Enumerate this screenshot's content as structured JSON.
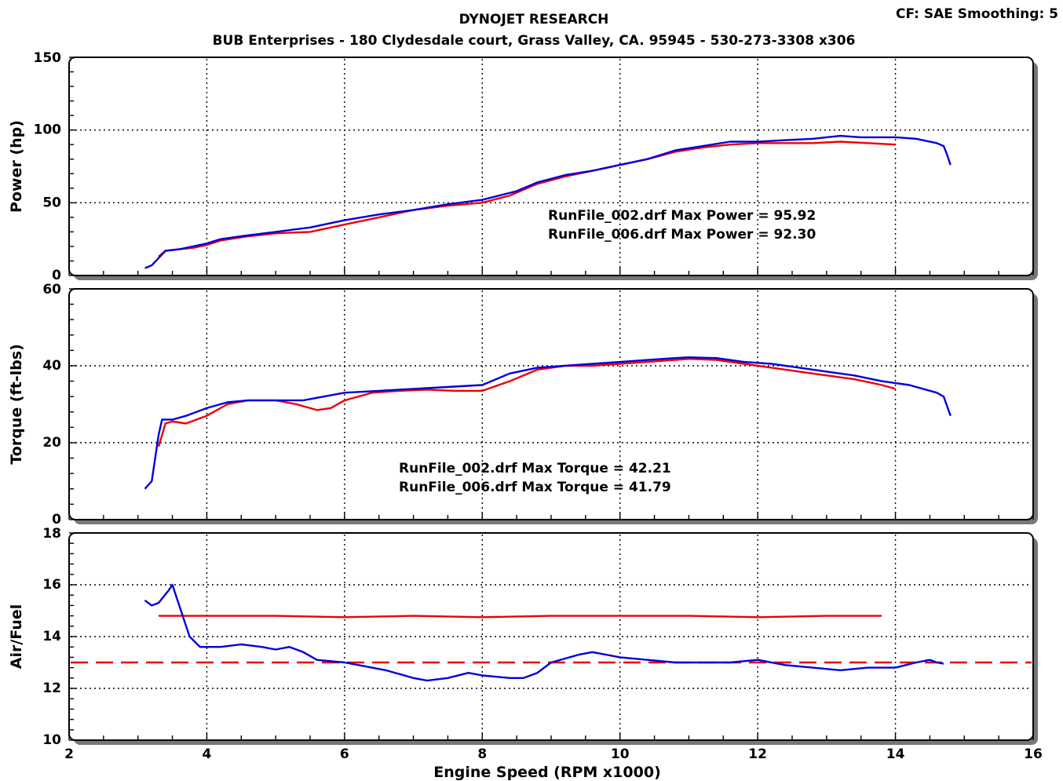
{
  "header": {
    "title": "DYNOJET RESEARCH",
    "subtitle": "BUB Enterprises - 180 Clydesdale court, Grass Valley, CA. 95945 - 530-273-3308 x306",
    "cf_label": "CF: SAE  Smoothing: 5"
  },
  "colors": {
    "run_002": "#0000dd",
    "run_006": "#ee0000",
    "grid": "#000000",
    "panel_shadow": "#777777"
  },
  "chart_data": [
    {
      "type": "line",
      "id": "power",
      "ylabel": "Power (hp)",
      "ylim": [
        0,
        150
      ],
      "yticks": [
        0,
        50,
        100,
        150
      ],
      "xlim": [
        2,
        16
      ],
      "grid": true,
      "annotations": [
        "RunFile_002.drf Max Power = 95.92",
        "RunFile_006.drf Max Power = 92.30"
      ],
      "series": [
        {
          "color": "#0000dd",
          "points": [
            [
              3.1,
              5
            ],
            [
              3.2,
              7
            ],
            [
              3.3,
              12
            ],
            [
              3.4,
              17
            ],
            [
              3.6,
              18
            ],
            [
              3.8,
              20
            ],
            [
              4.0,
              22
            ],
            [
              4.2,
              25
            ],
            [
              4.5,
              27
            ],
            [
              5.0,
              30
            ],
            [
              5.5,
              33
            ],
            [
              6.0,
              38
            ],
            [
              6.5,
              42
            ],
            [
              7.0,
              45
            ],
            [
              7.5,
              49
            ],
            [
              8.0,
              52
            ],
            [
              8.5,
              58
            ],
            [
              8.8,
              64
            ],
            [
              9.2,
              69
            ],
            [
              9.6,
              72
            ],
            [
              10.0,
              76
            ],
            [
              10.4,
              80
            ],
            [
              10.8,
              86
            ],
            [
              11.2,
              89
            ],
            [
              11.6,
              92
            ],
            [
              12.0,
              92
            ],
            [
              12.4,
              93
            ],
            [
              12.8,
              94
            ],
            [
              13.2,
              96
            ],
            [
              13.5,
              95
            ],
            [
              13.8,
              95
            ],
            [
              14.0,
              95
            ],
            [
              14.3,
              94
            ],
            [
              14.6,
              91
            ],
            [
              14.7,
              89
            ],
            [
              14.75,
              83
            ],
            [
              14.8,
              76
            ]
          ]
        },
        {
          "color": "#ee0000",
          "points": [
            [
              3.3,
              13
            ],
            [
              3.4,
              17
            ],
            [
              3.6,
              18
            ],
            [
              3.8,
              19
            ],
            [
              4.0,
              21
            ],
            [
              4.2,
              24
            ],
            [
              4.6,
              27
            ],
            [
              5.0,
              29
            ],
            [
              5.5,
              30
            ],
            [
              6.0,
              35
            ],
            [
              6.5,
              40
            ],
            [
              7.0,
              45
            ],
            [
              7.5,
              48
            ],
            [
              8.0,
              50
            ],
            [
              8.4,
              55
            ],
            [
              8.8,
              63
            ],
            [
              9.2,
              68
            ],
            [
              9.6,
              72
            ],
            [
              10.0,
              76
            ],
            [
              10.4,
              80
            ],
            [
              10.8,
              85
            ],
            [
              11.2,
              88
            ],
            [
              11.6,
              90
            ],
            [
              12.0,
              91
            ],
            [
              12.4,
              91
            ],
            [
              12.8,
              91
            ],
            [
              13.2,
              92
            ],
            [
              13.6,
              91
            ],
            [
              14.0,
              90
            ]
          ]
        }
      ]
    },
    {
      "type": "line",
      "id": "torque",
      "ylabel": "Torque (ft-lbs)",
      "ylim": [
        0,
        60
      ],
      "yticks": [
        0,
        20,
        40,
        60
      ],
      "xlim": [
        2,
        16
      ],
      "grid": true,
      "annotations": [
        "RunFile_002.drf Max Torque = 42.21",
        "RunFile_006.drf Max Torque = 41.79"
      ],
      "series": [
        {
          "color": "#0000dd",
          "points": [
            [
              3.1,
              8
            ],
            [
              3.2,
              10
            ],
            [
              3.3,
              22
            ],
            [
              3.35,
              26
            ],
            [
              3.5,
              26
            ],
            [
              3.7,
              27
            ],
            [
              4.0,
              29
            ],
            [
              4.3,
              30.5
            ],
            [
              4.6,
              31
            ],
            [
              5.0,
              31
            ],
            [
              5.4,
              31
            ],
            [
              5.7,
              32
            ],
            [
              6.0,
              33
            ],
            [
              6.5,
              33.5
            ],
            [
              7.0,
              34
            ],
            [
              7.5,
              34.5
            ],
            [
              8.0,
              35
            ],
            [
              8.4,
              38
            ],
            [
              8.8,
              39.5
            ],
            [
              9.2,
              40
            ],
            [
              9.6,
              40.5
            ],
            [
              10.0,
              41
            ],
            [
              10.4,
              41.5
            ],
            [
              10.8,
              42
            ],
            [
              11.0,
              42.2
            ],
            [
              11.4,
              42
            ],
            [
              11.8,
              41
            ],
            [
              12.2,
              40.5
            ],
            [
              12.6,
              39.5
            ],
            [
              13.0,
              38.5
            ],
            [
              13.4,
              37.5
            ],
            [
              13.8,
              36
            ],
            [
              14.2,
              35
            ],
            [
              14.6,
              33
            ],
            [
              14.7,
              32
            ],
            [
              14.8,
              27
            ]
          ]
        },
        {
          "color": "#ee0000",
          "points": [
            [
              3.3,
              19
            ],
            [
              3.4,
              25
            ],
            [
              3.5,
              25.5
            ],
            [
              3.7,
              25
            ],
            [
              4.0,
              27
            ],
            [
              4.3,
              30
            ],
            [
              4.6,
              31
            ],
            [
              5.0,
              31
            ],
            [
              5.3,
              30
            ],
            [
              5.6,
              28.5
            ],
            [
              5.8,
              29
            ],
            [
              6.0,
              31
            ],
            [
              6.4,
              33
            ],
            [
              6.8,
              33.5
            ],
            [
              7.2,
              33.8
            ],
            [
              7.6,
              33.5
            ],
            [
              8.0,
              33.5
            ],
            [
              8.4,
              36
            ],
            [
              8.8,
              39
            ],
            [
              9.2,
              40
            ],
            [
              9.6,
              40
            ],
            [
              10.0,
              40.5
            ],
            [
              10.4,
              41
            ],
            [
              10.8,
              41.5
            ],
            [
              11.0,
              41.8
            ],
            [
              11.4,
              41.5
            ],
            [
              11.8,
              40.5
            ],
            [
              12.2,
              39.5
            ],
            [
              12.6,
              38.5
            ],
            [
              13.0,
              37.5
            ],
            [
              13.4,
              36.5
            ],
            [
              13.8,
              35
            ],
            [
              14.0,
              34
            ]
          ]
        }
      ]
    },
    {
      "type": "line",
      "id": "air-fuel",
      "ylabel": "Air/Fuel",
      "ylim": [
        10,
        18
      ],
      "yticks": [
        10,
        12,
        14,
        16,
        18
      ],
      "xlim": [
        2,
        16
      ],
      "xticks": [
        2,
        4,
        6,
        8,
        10,
        12,
        14,
        16
      ],
      "xlabel": "Engine Speed (RPM x1000)",
      "grid": true,
      "reference_line": {
        "y": 13,
        "color": "#ee0000",
        "style": "dashed"
      },
      "series": [
        {
          "color": "#0000dd",
          "points": [
            [
              3.1,
              15.4
            ],
            [
              3.2,
              15.2
            ],
            [
              3.3,
              15.3
            ],
            [
              3.45,
              15.8
            ],
            [
              3.5,
              16.0
            ],
            [
              3.6,
              15.2
            ],
            [
              3.75,
              14.0
            ],
            [
              3.9,
              13.6
            ],
            [
              4.2,
              13.6
            ],
            [
              4.5,
              13.7
            ],
            [
              4.8,
              13.6
            ],
            [
              5.0,
              13.5
            ],
            [
              5.2,
              13.6
            ],
            [
              5.4,
              13.4
            ],
            [
              5.6,
              13.1
            ],
            [
              6.0,
              13.0
            ],
            [
              6.4,
              12.8
            ],
            [
              6.6,
              12.7
            ],
            [
              7.0,
              12.4
            ],
            [
              7.2,
              12.3
            ],
            [
              7.5,
              12.4
            ],
            [
              7.8,
              12.6
            ],
            [
              8.0,
              12.5
            ],
            [
              8.4,
              12.4
            ],
            [
              8.6,
              12.4
            ],
            [
              8.8,
              12.6
            ],
            [
              9.0,
              13.0
            ],
            [
              9.4,
              13.3
            ],
            [
              9.6,
              13.4
            ],
            [
              10.0,
              13.2
            ],
            [
              10.4,
              13.1
            ],
            [
              10.8,
              13.0
            ],
            [
              11.2,
              13.0
            ],
            [
              11.6,
              13.0
            ],
            [
              12.0,
              13.1
            ],
            [
              12.4,
              12.9
            ],
            [
              12.8,
              12.8
            ],
            [
              13.2,
              12.7
            ],
            [
              13.6,
              12.8
            ],
            [
              14.0,
              12.8
            ],
            [
              14.3,
              13.0
            ],
            [
              14.5,
              13.1
            ],
            [
              14.6,
              13.0
            ],
            [
              14.7,
              12.95
            ]
          ]
        },
        {
          "color": "#ee0000",
          "points": [
            [
              3.3,
              14.8
            ],
            [
              4.0,
              14.8
            ],
            [
              5.0,
              14.8
            ],
            [
              6.0,
              14.75
            ],
            [
              7.0,
              14.8
            ],
            [
              8.0,
              14.75
            ],
            [
              9.0,
              14.8
            ],
            [
              10.0,
              14.8
            ],
            [
              11.0,
              14.8
            ],
            [
              12.0,
              14.75
            ],
            [
              13.0,
              14.8
            ],
            [
              13.8,
              14.8
            ]
          ]
        }
      ]
    }
  ]
}
